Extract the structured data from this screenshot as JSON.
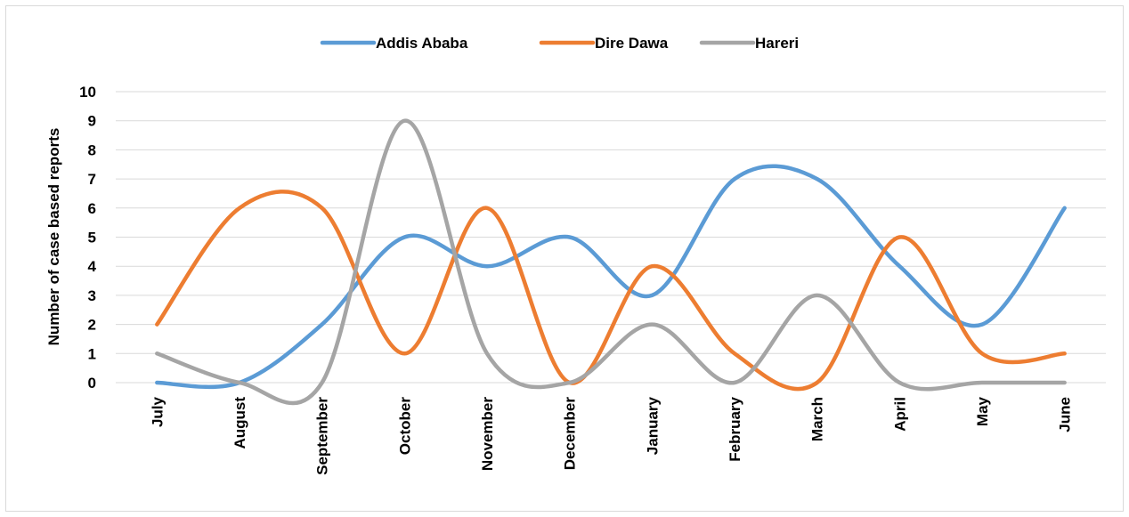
{
  "chart_data": {
    "type": "line",
    "smooth": true,
    "title": "",
    "xlabel": "",
    "ylabel": "Number of case based reports",
    "ylim": [
      0,
      10
    ],
    "yticks": [
      0,
      1,
      2,
      3,
      4,
      5,
      6,
      7,
      8,
      9,
      10
    ],
    "grid": true,
    "legend_position": "top-center",
    "categories": [
      "July",
      "August",
      "September",
      "October",
      "November",
      "December",
      "January",
      "February",
      "March",
      "April",
      "May",
      "June"
    ],
    "series": [
      {
        "name": "Addis Ababa",
        "color": "#5b9bd5",
        "values": [
          0,
          0,
          2,
          5,
          4,
          5,
          3,
          7,
          7,
          4,
          2,
          6
        ]
      },
      {
        "name": "Dire Dawa",
        "color": "#ed7d31",
        "values": [
          2,
          6,
          6,
          1,
          6,
          0,
          4,
          1,
          0,
          5,
          1,
          1
        ]
      },
      {
        "name": "Hareri",
        "color": "#a5a5a5",
        "values": [
          1,
          0,
          0,
          9,
          1,
          0,
          2,
          0,
          3,
          0,
          0,
          0
        ]
      }
    ]
  }
}
